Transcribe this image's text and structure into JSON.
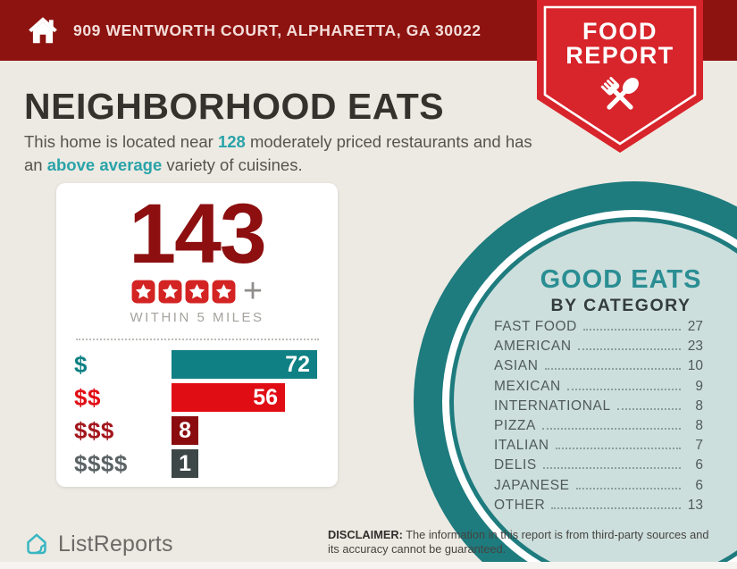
{
  "colors": {
    "background": "#edeae3",
    "header_red": "#8d1310",
    "badge_red": "#d8242b",
    "accent_teal": "#29a3a9",
    "dark_red": "#8d0f10",
    "star_red": "#d32323",
    "circle_teal": "#1e7b7e",
    "circle_interior": "#cddfdd"
  },
  "header": {
    "address": "909 WENTWORTH COURT, ALPHARETTA, GA 30022"
  },
  "badge": {
    "line1": "FOOD",
    "line2": "REPORT"
  },
  "main": {
    "title": "NEIGHBORHOOD EATS",
    "intro": {
      "pre": "This home is located near ",
      "count": "128",
      "mid": " moderately priced restaurants and has an ",
      "highlight": "above average",
      "post": " variety of cuisines."
    }
  },
  "stats_card": {
    "total": "143",
    "stars": 4,
    "plus": "+",
    "caption": "WITHIN 5 MILES"
  },
  "chart_data": [
    {
      "type": "bar",
      "title": "Moderately priced restaurants within 5 miles by price tier",
      "orientation": "horizontal",
      "categories": [
        "$",
        "$$",
        "$$$",
        "$$$$"
      ],
      "values": [
        72,
        56,
        8,
        1
      ],
      "xlim": [
        0,
        72
      ],
      "bar_colors": [
        "#0f8083",
        "#e10d14",
        "#8a0c0e",
        "#3d4748"
      ],
      "label_colors": [
        "#0f8083",
        "#e10d14",
        "#a3161c",
        "#5a6263"
      ],
      "value_label_color": "#ffffff",
      "annotations": {
        "total": "143",
        "rating_stars": 4,
        "caption": "WITHIN 5 MILES"
      }
    },
    {
      "type": "table",
      "title": "GOOD EATS BY CATEGORY",
      "categories": [
        "FAST FOOD",
        "AMERICAN",
        "ASIAN",
        "MEXICAN",
        "INTERNATIONAL",
        "PIZZA",
        "ITALIAN",
        "DELIS",
        "JAPANESE",
        "OTHER"
      ],
      "values": [
        27,
        23,
        10,
        9,
        8,
        8,
        7,
        6,
        6,
        13
      ]
    }
  ],
  "good_eats": {
    "title": "GOOD EATS",
    "subtitle": "BY CATEGORY"
  },
  "footer": {
    "brand": "ListReports",
    "disclaimer_label": "DISCLAIMER:",
    "disclaimer_text": " The information in this report is from third-party sources and its accuracy cannot be guaranteed."
  }
}
